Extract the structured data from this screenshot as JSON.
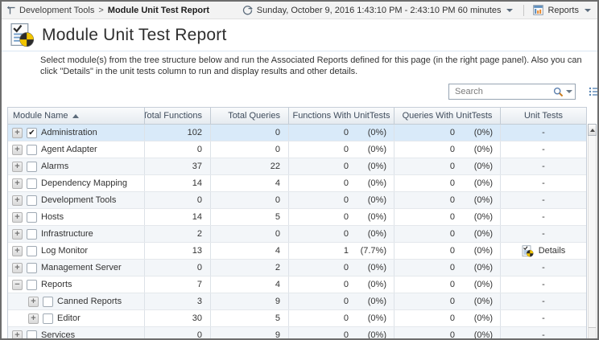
{
  "breadcrumb": {
    "parent": "Development Tools",
    "separator": ">",
    "current": "Module Unit Test Report"
  },
  "topbar": {
    "time_range": "Sunday, October 9, 2016 1:43:10 PM - 2:43:10 PM 60 minutes",
    "reports_label": "Reports"
  },
  "page": {
    "title": "Module Unit Test Report",
    "description": "Select module(s) from the tree structure below and run the Associated Reports defined for this page (in the right page panel). Also you can click \"Details\" in the unit tests column to run and display results and other details."
  },
  "search": {
    "placeholder": "Search"
  },
  "icons": {
    "plus": "+",
    "minus": "−",
    "check": "✔"
  },
  "colors": {
    "selected_row": "#d9eaf9",
    "pie_yellow": "#f2c500",
    "pie_black": "#2b2b2b",
    "header_text": "#3f4c5c"
  },
  "table": {
    "columns": [
      "Module Name",
      "Total Functions",
      "Total Queries",
      "Functions With UnitTests",
      "Queries With UnitTests",
      "Unit Tests"
    ],
    "sort_column": "Module Name",
    "sort_direction": "asc",
    "rows": [
      {
        "name": "Administration",
        "level": 0,
        "expander": "plus",
        "checked": true,
        "selected": true,
        "total_functions": "102",
        "total_queries": "0",
        "func_ut": "0",
        "func_ut_pct": "(0%)",
        "query_ut": "0",
        "query_ut_pct": "(0%)",
        "unit_tests": "-"
      },
      {
        "name": "Agent Adapter",
        "level": 0,
        "expander": "plus",
        "checked": false,
        "selected": false,
        "total_functions": "0",
        "total_queries": "0",
        "func_ut": "0",
        "func_ut_pct": "(0%)",
        "query_ut": "0",
        "query_ut_pct": "(0%)",
        "unit_tests": "-"
      },
      {
        "name": "Alarms",
        "level": 0,
        "expander": "plus",
        "checked": false,
        "selected": false,
        "total_functions": "37",
        "total_queries": "22",
        "func_ut": "0",
        "func_ut_pct": "(0%)",
        "query_ut": "0",
        "query_ut_pct": "(0%)",
        "unit_tests": "-"
      },
      {
        "name": "Dependency Mapping",
        "level": 0,
        "expander": "plus",
        "checked": false,
        "selected": false,
        "total_functions": "14",
        "total_queries": "4",
        "func_ut": "0",
        "func_ut_pct": "(0%)",
        "query_ut": "0",
        "query_ut_pct": "(0%)",
        "unit_tests": "-"
      },
      {
        "name": "Development Tools",
        "level": 0,
        "expander": "plus",
        "checked": false,
        "selected": false,
        "total_functions": "0",
        "total_queries": "0",
        "func_ut": "0",
        "func_ut_pct": "(0%)",
        "query_ut": "0",
        "query_ut_pct": "(0%)",
        "unit_tests": "-"
      },
      {
        "name": "Hosts",
        "level": 0,
        "expander": "plus",
        "checked": false,
        "selected": false,
        "total_functions": "14",
        "total_queries": "5",
        "func_ut": "0",
        "func_ut_pct": "(0%)",
        "query_ut": "0",
        "query_ut_pct": "(0%)",
        "unit_tests": "-"
      },
      {
        "name": "Infrastructure",
        "level": 0,
        "expander": "plus",
        "checked": false,
        "selected": false,
        "total_functions": "2",
        "total_queries": "0",
        "func_ut": "0",
        "func_ut_pct": "(0%)",
        "query_ut": "0",
        "query_ut_pct": "(0%)",
        "unit_tests": "-"
      },
      {
        "name": "Log Monitor",
        "level": 0,
        "expander": "plus",
        "checked": false,
        "selected": false,
        "total_functions": "13",
        "total_queries": "4",
        "func_ut": "1",
        "func_ut_pct": "(7.7%)",
        "query_ut": "0",
        "query_ut_pct": "(0%)",
        "unit_tests": "Details",
        "has_details": true
      },
      {
        "name": "Management Server",
        "level": 0,
        "expander": "plus",
        "checked": false,
        "selected": false,
        "total_functions": "0",
        "total_queries": "2",
        "func_ut": "0",
        "func_ut_pct": "(0%)",
        "query_ut": "0",
        "query_ut_pct": "(0%)",
        "unit_tests": "-"
      },
      {
        "name": "Reports",
        "level": 0,
        "expander": "minus",
        "checked": false,
        "selected": false,
        "total_functions": "7",
        "total_queries": "4",
        "func_ut": "0",
        "func_ut_pct": "(0%)",
        "query_ut": "0",
        "query_ut_pct": "(0%)",
        "unit_tests": "-"
      },
      {
        "name": "Canned Reports",
        "level": 1,
        "expander": "plus",
        "checked": false,
        "selected": false,
        "total_functions": "3",
        "total_queries": "9",
        "func_ut": "0",
        "func_ut_pct": "(0%)",
        "query_ut": "0",
        "query_ut_pct": "(0%)",
        "unit_tests": "-"
      },
      {
        "name": "Editor",
        "level": 1,
        "expander": "plus",
        "checked": false,
        "selected": false,
        "total_functions": "30",
        "total_queries": "5",
        "func_ut": "0",
        "func_ut_pct": "(0%)",
        "query_ut": "0",
        "query_ut_pct": "(0%)",
        "unit_tests": "-"
      },
      {
        "name": "Services",
        "level": 0,
        "expander": "plus",
        "checked": false,
        "selected": false,
        "total_functions": "0",
        "total_queries": "9",
        "func_ut": "0",
        "func_ut_pct": "(0%)",
        "query_ut": "0",
        "query_ut_pct": "(0%)",
        "unit_tests": "-"
      }
    ]
  }
}
